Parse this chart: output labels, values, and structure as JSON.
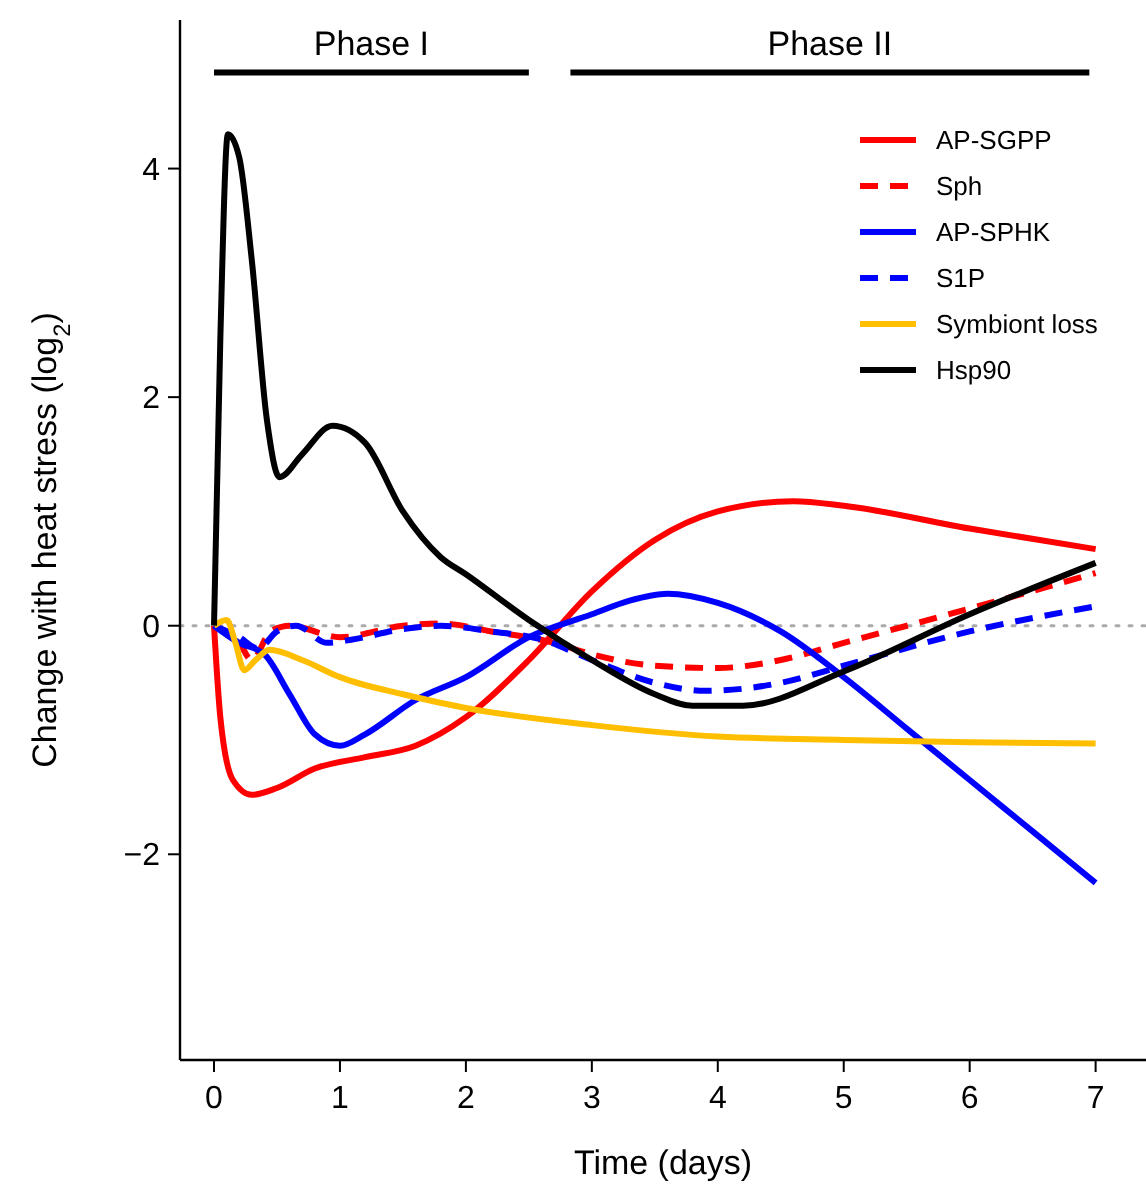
{
  "chart_data": {
    "type": "line",
    "xlabel": "Time (days)",
    "ylabel": "Change with heat stress (log$_{2}$)",
    "xlim": [
      -0.27,
      7.4
    ],
    "ylim": [
      -3.8,
      5.3
    ],
    "xticks": [
      0,
      1,
      2,
      3,
      4,
      5,
      6,
      7
    ],
    "yticks": [
      -2,
      0,
      2,
      4
    ],
    "legend": "top right",
    "grid": false,
    "ref_lines": [
      {
        "axis": "y",
        "value": 0,
        "color": "#aaaaaa",
        "line_style": "dotted"
      }
    ],
    "annotations": [
      "Phase I",
      "Phase II"
    ],
    "series": [
      {
        "name": "AP-SGPP",
        "color": "#ff0000",
        "line_style": "solid",
        "x": [
          0,
          0.05,
          0.15,
          0.3,
          0.5,
          0.8,
          1.2,
          1.6,
          2,
          2.5,
          3,
          3.5,
          4,
          4.6,
          5,
          6,
          7
        ],
        "values": [
          0,
          -0.8,
          -1.35,
          -1.48,
          -1.42,
          -1.25,
          -1.15,
          -1.05,
          -0.8,
          -0.3,
          0.3,
          0.75,
          1.0,
          1.09,
          1.05,
          0.85,
          0.67
        ]
      },
      {
        "name": "Sph",
        "color": "#ff0000",
        "line_style": "dashed",
        "x": [
          0,
          0.2,
          0.3,
          0.45,
          0.6,
          1,
          1.5,
          1.8,
          2.2,
          2.7,
          3,
          3.5,
          4,
          4.5,
          5,
          6,
          7
        ],
        "values": [
          0,
          -0.15,
          -0.3,
          -0.05,
          0,
          -0.1,
          0,
          0.02,
          -0.05,
          -0.15,
          -0.25,
          -0.35,
          -0.37,
          -0.3,
          -0.15,
          0.15,
          0.46
        ]
      },
      {
        "name": "AP-SPHK",
        "color": "#0000ff",
        "line_style": "solid",
        "x": [
          0,
          0.2,
          0.4,
          0.6,
          0.8,
          1,
          1.2,
          1.6,
          2,
          2.5,
          3,
          3.3,
          3.6,
          4,
          4.5,
          5,
          5.5,
          6,
          6.5,
          7
        ],
        "values": [
          0,
          -0.15,
          -0.25,
          -0.6,
          -0.95,
          -1.05,
          -0.95,
          -0.65,
          -0.45,
          -0.1,
          0.1,
          0.22,
          0.28,
          0.2,
          -0.05,
          -0.45,
          -0.9,
          -1.35,
          -1.8,
          -2.25
        ]
      },
      {
        "name": "S1P",
        "color": "#0000ff",
        "line_style": "dashed",
        "x": [
          0,
          0.2,
          0.35,
          0.5,
          0.65,
          0.9,
          1.1,
          1.5,
          1.8,
          2.2,
          2.6,
          3,
          3.5,
          3.9,
          4.5,
          5,
          6,
          7
        ],
        "values": [
          0,
          -0.1,
          -0.2,
          -0.05,
          0,
          -0.15,
          -0.12,
          -0.03,
          0,
          -0.05,
          -0.12,
          -0.3,
          -0.5,
          -0.57,
          -0.5,
          -0.35,
          -0.05,
          0.17
        ]
      },
      {
        "name": "Symbiont loss",
        "color": "#ffbf00",
        "line_style": "solid",
        "x": [
          0,
          0.1,
          0.17,
          0.24,
          0.33,
          0.44,
          0.7,
          1,
          1.5,
          2,
          3,
          4,
          5,
          6,
          7
        ],
        "values": [
          0,
          0.05,
          -0.15,
          -0.39,
          -0.3,
          -0.21,
          -0.3,
          -0.45,
          -0.6,
          -0.72,
          -0.87,
          -0.97,
          -1.0,
          -1.02,
          -1.03
        ]
      },
      {
        "color": "#000000",
        "line_style": "solid",
        "x": [
          0,
          2.5
        ],
        "values": [
          4.84,
          4.84
        ]
      },
      {
        "color": "#000000",
        "line_style": "solid",
        "x": [
          2.83,
          6.95
        ],
        "values": [
          4.84,
          4.84
        ]
      },
      {
        "name": "Hsp90",
        "color": "#000000",
        "line_style": "solid",
        "x": [
          0,
          0.05,
          0.11,
          0.2,
          0.3,
          0.42,
          0.52,
          0.7,
          0.94,
          1.2,
          1.5,
          1.8,
          2,
          2.5,
          3,
          3.5,
          3.8,
          4.2,
          5,
          6,
          7
        ],
        "values": [
          0,
          2.5,
          4.3,
          4.1,
          3.2,
          1.8,
          1.3,
          1.5,
          1.75,
          1.6,
          1.0,
          0.6,
          0.45,
          0.05,
          -0.3,
          -0.6,
          -0.7,
          -0.7,
          -0.4,
          0.1,
          0.55
        ]
      }
    ]
  }
}
